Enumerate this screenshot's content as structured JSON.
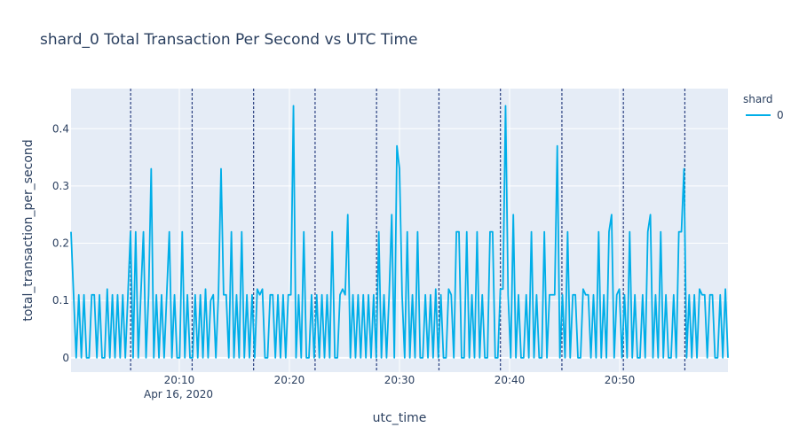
{
  "chart_data": {
    "type": "line",
    "title": "shard_0 Total Transaction Per Second vs UTC Time",
    "xlabel": "utc_time",
    "ylabel": "total_transaction_per_second",
    "x_date_label": "Apr 16, 2020",
    "xlim": [
      "20:00:10",
      "20:59:50"
    ],
    "ylim": [
      -0.025,
      0.47
    ],
    "x_ticks": [
      "20:10",
      "20:20",
      "20:30",
      "20:40",
      "20:50"
    ],
    "y_ticks": [
      "0",
      "0.1",
      "0.2",
      "0.3",
      "0.4"
    ],
    "grid": true,
    "legend": {
      "title": "shard",
      "placement": "top-right",
      "entries": [
        "0"
      ]
    },
    "colors": {
      "line": "#00aee8",
      "vline": "#2a3f80",
      "plot_bg": "#e5ecf6",
      "grid": "#ffffff",
      "text": "#2a3f5f"
    },
    "vlines": [
      "20:05:35",
      "20:11:10",
      "20:16:45",
      "20:22:20",
      "20:27:55",
      "20:33:35",
      "20:39:10",
      "20:44:45",
      "20:50:20",
      "20:55:55"
    ],
    "series": [
      {
        "name": "0",
        "x_start": "20:00:10",
        "x_end": "20:59:50",
        "values": [
          0.22,
          0.11,
          0,
          0.11,
          0,
          0.11,
          0,
          0,
          0.11,
          0.11,
          0,
          0.11,
          0,
          0,
          0.12,
          0,
          0.11,
          0,
          0.11,
          0,
          0.11,
          0,
          0.11,
          0.22,
          0,
          0.22,
          0,
          0.11,
          0.22,
          0,
          0.11,
          0.33,
          0,
          0.11,
          0,
          0.11,
          0,
          0.11,
          0.22,
          0,
          0.11,
          0,
          0,
          0.22,
          0,
          0.11,
          0,
          0,
          0.11,
          0,
          0.11,
          0,
          0.12,
          0,
          0.1,
          0.11,
          0,
          0.11,
          0.33,
          0.11,
          0.11,
          0,
          0.22,
          0,
          0.11,
          0,
          0.22,
          0,
          0.11,
          0,
          0.11,
          0,
          0.12,
          0.11,
          0.12,
          0,
          0,
          0.11,
          0.11,
          0,
          0.11,
          0,
          0.11,
          0,
          0.11,
          0.11,
          0.44,
          0,
          0.11,
          0,
          0.22,
          0,
          0,
          0.11,
          0,
          0.11,
          0,
          0.11,
          0,
          0.11,
          0,
          0.22,
          0,
          0,
          0.11,
          0.12,
          0.11,
          0.25,
          0,
          0.11,
          0,
          0.11,
          0,
          0.11,
          0,
          0.11,
          0,
          0.11,
          0,
          0.22,
          0,
          0.11,
          0,
          0.11,
          0.25,
          0,
          0.37,
          0.33,
          0.11,
          0,
          0.22,
          0,
          0.11,
          0,
          0.22,
          0,
          0,
          0.11,
          0,
          0.11,
          0,
          0.12,
          0,
          0.11,
          0,
          0,
          0.12,
          0.11,
          0,
          0.22,
          0.22,
          0,
          0,
          0.22,
          0,
          0.11,
          0,
          0.22,
          0,
          0.11,
          0,
          0,
          0.22,
          0.22,
          0,
          0,
          0.12,
          0.12,
          0.44,
          0.11,
          0,
          0.25,
          0,
          0.11,
          0,
          0,
          0.11,
          0,
          0.22,
          0,
          0.11,
          0,
          0,
          0.22,
          0,
          0.11,
          0.11,
          0.11,
          0.37,
          0,
          0.11,
          0,
          0.22,
          0,
          0.11,
          0.11,
          0,
          0,
          0.12,
          0.11,
          0.11,
          0,
          0.11,
          0,
          0.22,
          0,
          0.11,
          0,
          0.22,
          0.25,
          0,
          0.11,
          0.12,
          0,
          0.11,
          0,
          0.22,
          0,
          0.11,
          0,
          0,
          0.11,
          0,
          0.22,
          0.25,
          0,
          0.11,
          0,
          0.22,
          0,
          0.11,
          0,
          0,
          0.11,
          0,
          0.22,
          0.22,
          0.33,
          0,
          0.11,
          0,
          0.11,
          0,
          0.12,
          0.11,
          0.11,
          0,
          0.11,
          0.11,
          0,
          0,
          0.11,
          0,
          0.12,
          0
        ]
      }
    ]
  }
}
